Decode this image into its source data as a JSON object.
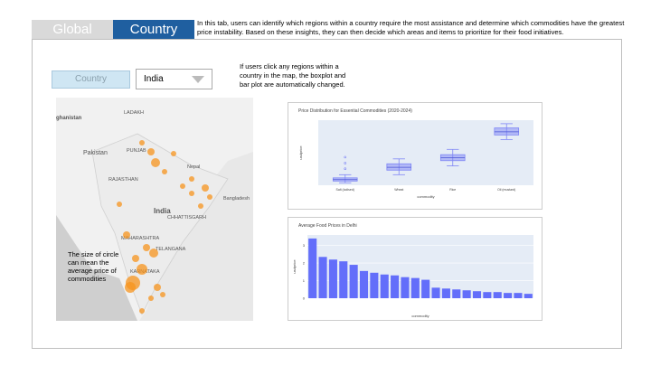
{
  "tabs": [
    "Global",
    "Country"
  ],
  "description": "In this tab, users can identify which regions within a country require the most assistance and determine which commodities have the greatest price instability. Based on these insights, they can then decide which areas and items to prioritize for their food initiatives.",
  "filter": {
    "label": "Country",
    "selected": "India"
  },
  "annotation": "If users click any regions within a country in the map, the boxplot and bar plot are automatically changed.",
  "map": {
    "note": "The size of circle can mean the average price of commodities",
    "labels": [
      "ghanistan",
      "LADAKH",
      "Pakistan",
      "PUNJAB",
      "RAJASTHAN",
      "Nepal",
      "India",
      "CHHATTISGARH",
      "Bangladesh",
      "MAHARASHTRA",
      "TELANGANA",
      "KARNATAKA"
    ]
  },
  "chart_data": [
    {
      "type": "box",
      "title": "Price Distribution for Essential Commodities (2020-2024)",
      "x_label": "commodity",
      "y_label": "usdprice",
      "color": "#7f86f5",
      "categories": [
        "Salt (iodised)",
        "Wheat",
        "Rice",
        "Oil (mustard)"
      ],
      "min": [
        0.22,
        0.45,
        0.7,
        1.45
      ],
      "q1": [
        0.27,
        0.58,
        0.85,
        1.58
      ],
      "median": [
        0.31,
        0.66,
        0.93,
        1.67
      ],
      "q3": [
        0.36,
        0.76,
        1.02,
        1.78
      ],
      "max": [
        0.45,
        0.9,
        1.17,
        1.9
      ],
      "outliers": [
        [
          0.62,
          0.78,
          0.95
        ],
        [],
        [],
        []
      ],
      "ylim": [
        0.15,
        2.0
      ],
      "grid": true
    },
    {
      "type": "bar",
      "title": "Average Food Prices in Delhi",
      "x_label": "commodity",
      "y_label": "usdprice",
      "color": "#636efa",
      "categories": [
        null,
        null,
        null,
        null,
        null,
        null,
        null,
        null,
        null,
        null,
        null,
        null,
        null,
        null,
        null,
        null,
        null,
        null,
        null,
        null,
        null,
        null
      ],
      "values": [
        3.4,
        2.35,
        2.2,
        2.1,
        1.9,
        1.55,
        1.45,
        1.35,
        1.3,
        1.2,
        1.15,
        1.05,
        0.6,
        0.55,
        0.5,
        0.45,
        0.4,
        0.35,
        0.35,
        0.3,
        0.3,
        0.25
      ],
      "ylim": [
        0,
        3.6
      ],
      "yticks": [
        0,
        1,
        2,
        3
      ],
      "grid": true
    }
  ]
}
